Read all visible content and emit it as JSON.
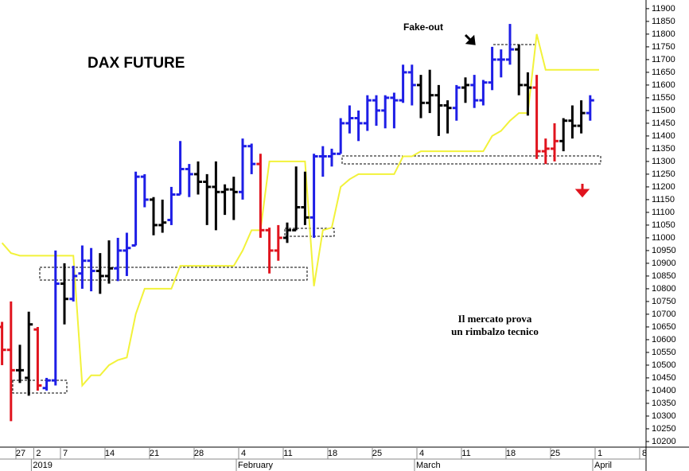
{
  "chart_data": {
    "type": "ohlc",
    "title": "DAX FUTURE",
    "annotations": [
      "Fake-out",
      "Il mercato prova",
      "un rimbalzo tecnico"
    ],
    "categories": [
      null,
      null,
      "27",
      null,
      "2",
      null,
      null,
      "7",
      null,
      null,
      null,
      null,
      "14",
      null,
      null,
      null,
      null,
      "21",
      null,
      null,
      null,
      null,
      "28",
      null,
      null,
      null,
      null,
      "4",
      null,
      null,
      null,
      null,
      "11",
      null,
      null,
      null,
      null,
      "18",
      null,
      null,
      null,
      null,
      "25",
      null,
      null,
      null,
      null,
      "4",
      null,
      null,
      null,
      null,
      "11",
      null,
      null,
      null,
      null,
      "18",
      null,
      null,
      null,
      null,
      "25",
      null,
      null,
      null,
      null,
      "1",
      null,
      null,
      null,
      null,
      "8"
    ],
    "months": [
      null,
      null,
      null,
      null,
      "2019",
      null,
      null,
      null,
      null,
      null,
      null,
      null,
      null,
      null,
      null,
      null,
      null,
      null,
      null,
      null,
      null,
      null,
      null,
      null,
      null,
      null,
      null,
      "February",
      null,
      null,
      null,
      null,
      null,
      null,
      null,
      null,
      null,
      null,
      null,
      null,
      null,
      null,
      null,
      null,
      null,
      null,
      null,
      "March",
      null,
      null,
      null,
      null,
      null,
      null,
      null,
      null,
      null,
      null,
      null,
      null,
      null,
      null,
      null,
      null,
      null,
      null,
      null,
      "April",
      null,
      null,
      null,
      null,
      null
    ],
    "open": [
      10650,
      10560,
      10480,
      10450,
      10640,
      10410,
      10440,
      10820,
      10760,
      10860,
      10910,
      10870,
      10850,
      10880,
      10950,
      10970,
      11240,
      11150,
      11050,
      11070,
      11170,
      11270,
      11250,
      11220,
      11200,
      11180,
      11190,
      11180,
      11360,
      11290,
      11030,
      10950,
      11000,
      11030,
      11120,
      11080,
      11320,
      11320,
      11330,
      11450,
      11470,
      11450,
      11540,
      11500,
      11550,
      11540,
      11650,
      11600,
      11530,
      11560,
      11520,
      11510,
      11590,
      11600,
      11540,
      11610,
      11700,
      11700,
      11740,
      11600,
      11590,
      11340,
      11350,
      11380,
      11460,
      11440,
      11490,
      null,
      null,
      null,
      null,
      null,
      null
    ],
    "high": [
      10670,
      10750,
      10580,
      10710,
      10650,
      10450,
      10950,
      10900,
      10890,
      10970,
      10960,
      10940,
      10990,
      11000,
      11020,
      11260,
      11250,
      11160,
      11150,
      11200,
      11380,
      11290,
      11300,
      11250,
      11300,
      11210,
      11240,
      11390,
      11370,
      11330,
      11040,
      11050,
      11060,
      11280,
      11260,
      11330,
      11360,
      11350,
      11470,
      11520,
      11500,
      11560,
      11560,
      11560,
      11570,
      11680,
      11680,
      11640,
      11660,
      11600,
      11540,
      11600,
      11630,
      11640,
      11620,
      11750,
      11740,
      11840,
      11760,
      11650,
      11640,
      11390,
      11450,
      11470,
      11520,
      11540,
      11560,
      null,
      null,
      null,
      null,
      null,
      null
    ],
    "low": [
      10500,
      10280,
      10430,
      10380,
      10400,
      10400,
      10420,
      10660,
      10750,
      10800,
      10790,
      10780,
      10820,
      10830,
      10850,
      10970,
      11120,
      11010,
      11020,
      11050,
      11170,
      11160,
      11170,
      11050,
      11030,
      11090,
      11070,
      11150,
      11250,
      11000,
      10860,
      10910,
      10980,
      11030,
      11050,
      11000,
      11240,
      11280,
      11330,
      11410,
      11380,
      11420,
      11440,
      11430,
      11430,
      11530,
      11520,
      11470,
      11490,
      11400,
      11410,
      11460,
      11530,
      11510,
      11520,
      11580,
      11630,
      11680,
      11560,
      11480,
      11310,
      11290,
      11300,
      11340,
      11390,
      11410,
      11460,
      null,
      null,
      null,
      null,
      null,
      null
    ],
    "close": [
      10560,
      10480,
      10480,
      10660,
      10420,
      10440,
      10820,
      10760,
      10850,
      10910,
      10870,
      10850,
      10880,
      10950,
      10960,
      11240,
      11150,
      11050,
      11060,
      11170,
      11270,
      11250,
      11220,
      11200,
      11180,
      11190,
      11180,
      11360,
      11290,
      11030,
      10950,
      11000,
      11030,
      11120,
      11080,
      11320,
      11320,
      11330,
      11450,
      11470,
      11450,
      11540,
      11500,
      11550,
      11540,
      11650,
      11600,
      11530,
      11560,
      11520,
      11510,
      11590,
      11600,
      11540,
      11610,
      11700,
      11700,
      11740,
      11600,
      11590,
      11340,
      11350,
      11380,
      11460,
      11440,
      11490,
      11540,
      null,
      null,
      null,
      null,
      null,
      null
    ],
    "colors": [
      "#e0141e",
      "#e0141e",
      "#000000",
      "#000000",
      "#e0141e",
      "#1e1ee6",
      "#1e1ee6",
      "#000000",
      "#1e1ee6",
      "#1e1ee6",
      "#1e1ee6",
      "#000000",
      "#000000",
      "#1e1ee6",
      "#1e1ee6",
      "#1e1ee6",
      "#1e1ee6",
      "#000000",
      "#000000",
      "#1e1ee6",
      "#1e1ee6",
      "#1e1ee6",
      "#000000",
      "#000000",
      "#000000",
      "#000000",
      "#000000",
      "#1e1ee6",
      "#1e1ee6",
      "#e0141e",
      "#e0141e",
      "#e0141e",
      "#000000",
      "#000000",
      "#000000",
      "#1e1ee6",
      "#1e1ee6",
      "#1e1ee6",
      "#1e1ee6",
      "#1e1ee6",
      "#1e1ee6",
      "#1e1ee6",
      "#1e1ee6",
      "#1e1ee6",
      "#1e1ee6",
      "#1e1ee6",
      "#1e1ee6",
      "#000000",
      "#000000",
      "#000000",
      "#000000",
      "#1e1ee6",
      "#000000",
      "#1e1ee6",
      "#1e1ee6",
      "#1e1ee6",
      "#1e1ee6",
      "#1e1ee6",
      "#000000",
      "#000000",
      "#e0141e",
      "#e0141e",
      "#e0141e",
      "#000000",
      "#000000",
      "#000000",
      "#1e1ee6",
      null,
      null,
      null,
      null,
      null,
      null
    ],
    "line": {
      "color": "#f2f23a",
      "values": [
        10980,
        10940,
        10930,
        10930,
        10930,
        10930,
        10930,
        10930,
        10930,
        10420,
        10460,
        10460,
        10500,
        10520,
        10530,
        10700,
        10800,
        10800,
        10800,
        10800,
        10890,
        10890,
        10890,
        10890,
        10890,
        10890,
        10890,
        10950,
        11030,
        11030,
        11300,
        11300,
        11300,
        11300,
        11300,
        10810,
        11030,
        11040,
        11200,
        11230,
        11250,
        11250,
        11250,
        11250,
        11250,
        11320,
        11320,
        11340,
        11340,
        11340,
        11340,
        11340,
        11340,
        11340,
        11340,
        11400,
        11420,
        11460,
        11490,
        11490,
        11800,
        11660,
        11660,
        11660,
        11660,
        11660,
        11660,
        11660,
        null,
        null,
        null,
        null,
        null
      ]
    },
    "ylim": [
      10178,
      11934
    ],
    "yticks": [
      10200,
      10250,
      10300,
      10350,
      10400,
      10450,
      10500,
      10550,
      10600,
      10650,
      10700,
      10750,
      10800,
      10850,
      10900,
      10950,
      11000,
      11050,
      11100,
      11150,
      11200,
      11250,
      11300,
      11350,
      11400,
      11450,
      11500,
      11550,
      11600,
      11650,
      11700,
      11750,
      11800,
      11850,
      11900
    ]
  }
}
